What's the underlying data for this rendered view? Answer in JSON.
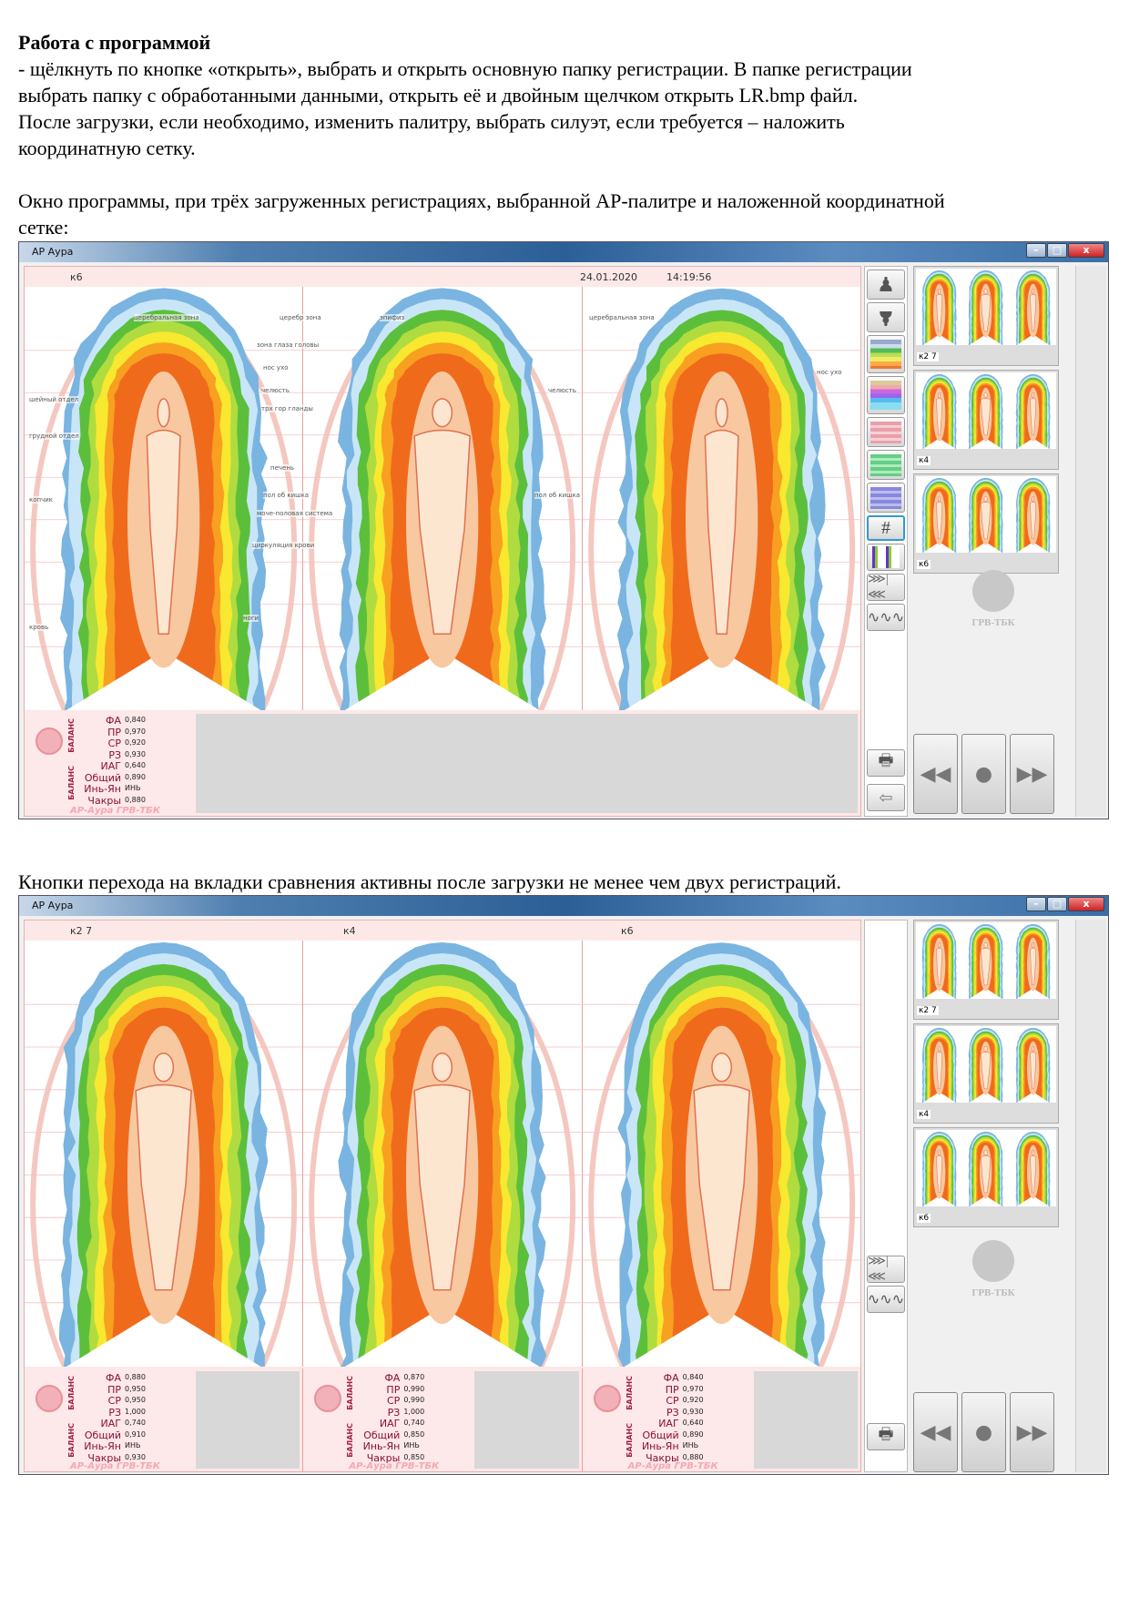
{
  "doc": {
    "heading": "Работа с программой",
    "p1": "- щёлкнуть по кнопке «открыть», выбрать и открыть основную папку регистрации. В папке регистрации",
    "p2": "выбрать папку с обработанными данными, открыть её и двойным щелчком открыть LR.bmp файл.",
    "p3": "После загрузки, если необходимо, изменить палитру, выбрать силуэт, если требуется – наложить",
    "p4": "координатную сетку.",
    "p5": "Окно программы, при трёх загруженных регистрациях, выбранной АР-палитре и наложенной координатной",
    "p6": "сетке:",
    "caption2": "Кнопки перехода на вкладки сравнения активны после загрузки не менее чем двух регистраций."
  },
  "window1": {
    "title": "АР Аура",
    "reg": "к6",
    "date": "24.01.2020",
    "time": "14:19:56",
    "zones": [
      "церебральная зона",
      "церебр зона",
      "эпифиз",
      "зона глаза головы",
      "нос ухо",
      "челюсть",
      "трх гор гланды",
      "печень",
      "пол об кишка",
      "моче-половая система",
      "циркуляция крови",
      "ноги",
      "шейный отдел",
      "грудной отдел",
      "копчик",
      "кровь"
    ],
    "stats": [
      {
        "labels": {
          "bal1": "БАЛАНС",
          "bal2": "БАЛАНС",
          "fa": "ФА",
          "pr": "ПР",
          "sr": "СР",
          "rz": "РЗ",
          "iag": "ИАГ",
          "gen": "Общий",
          "yy": "Инь-Ян",
          "ch": "Чакры"
        },
        "fa": "0,840",
        "pr": "0,970",
        "sr": "0,920",
        "rz": "0,930",
        "iag": "0,640",
        "gen": "0,890",
        "yy": "ИНЬ",
        "ch": "0,880",
        "brand": "АР-Аура ГРВ-ТБК"
      }
    ],
    "thumbs": [
      "к2 7",
      "к4",
      "к6"
    ],
    "logo": "ГРВ-ТБК",
    "nav": {
      "prev": "◀◀",
      "play": "●",
      "next": "▶▶"
    }
  },
  "window2": {
    "title": "АР Аура",
    "regs": [
      "к2 7",
      "к4",
      "к6"
    ],
    "stats": [
      {
        "fa": "0,880",
        "pr": "0,950",
        "sr": "0,950",
        "rz": "1,000",
        "iag": "0,740",
        "gen": "0,910",
        "yy": "ИНЬ",
        "ch": "0,930",
        "brand": "АР-Аура ГРВ-ТБК"
      },
      {
        "fa": "0,870",
        "pr": "0,990",
        "sr": "0,990",
        "rz": "1,000",
        "iag": "0,740",
        "gen": "0,850",
        "yy": "ИНЬ",
        "ch": "0,850",
        "brand": "АР-Аура ГРВ-ТБК"
      },
      {
        "fa": "0,840",
        "pr": "0,970",
        "sr": "0,920",
        "rz": "0,930",
        "iag": "0,640",
        "gen": "0,890",
        "yy": "ИНЬ",
        "ch": "0,880",
        "brand": "АР-Аура ГРВ-ТБК"
      }
    ],
    "thumbs": [
      "к2 7",
      "к4",
      "к6"
    ],
    "logo": "ГРВ-ТБК",
    "nav": {
      "prev": "◀◀",
      "play": "●",
      "next": "▶▶"
    }
  },
  "colors": {
    "blue": "#7ab4e0",
    "lightblue": "#c8e6f8",
    "green": "#5cbf3c",
    "lime": "#b0dc40",
    "yellow": "#f8e830",
    "orange": "#f8a020",
    "red": "#f06a1c",
    "peach": "#f8c8a0",
    "skin": "#fde6d0"
  }
}
